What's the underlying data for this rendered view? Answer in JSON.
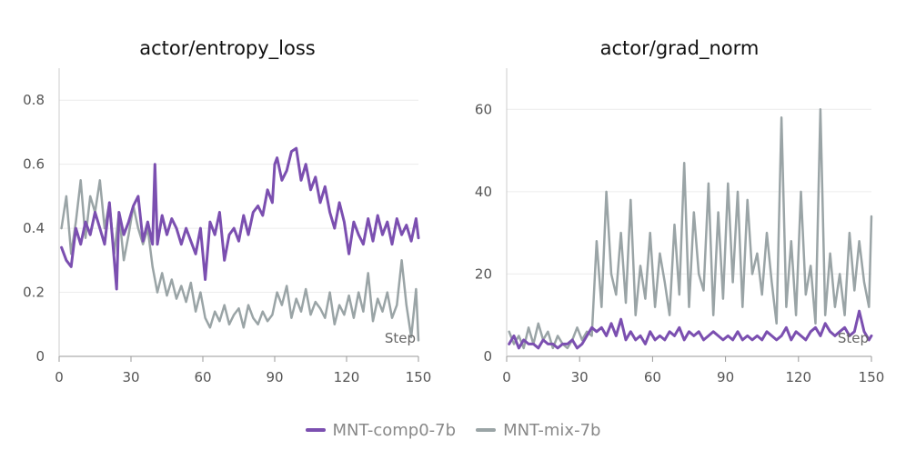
{
  "chart_data": [
    {
      "type": "line",
      "title": "actor/entropy_loss",
      "xlabel": "Step",
      "ylabel": "",
      "xlim": [
        0,
        150
      ],
      "ylim": [
        0,
        0.9
      ],
      "xticks": [
        "0",
        "30",
        "60",
        "90",
        "120",
        "150"
      ],
      "yticks": [
        "0",
        "0.2",
        "0.4",
        "0.6",
        "0.8"
      ],
      "grid": true,
      "series": [
        {
          "name": "MNT-comp0-7b",
          "color": "#7b4fb0",
          "x": [
            1,
            3,
            5,
            7,
            9,
            11,
            13,
            15,
            17,
            19,
            21,
            23,
            24,
            25,
            27,
            29,
            31,
            33,
            35,
            37,
            39,
            40,
            41,
            43,
            45,
            47,
            49,
            51,
            53,
            55,
            57,
            59,
            61,
            63,
            65,
            67,
            69,
            71,
            73,
            75,
            77,
            79,
            81,
            83,
            85,
            87,
            89,
            90,
            91,
            93,
            95,
            97,
            99,
            101,
            103,
            105,
            107,
            109,
            111,
            113,
            115,
            117,
            119,
            121,
            123,
            125,
            127,
            129,
            131,
            133,
            135,
            137,
            139,
            141,
            143,
            145,
            147,
            149,
            150
          ],
          "values": [
            0.34,
            0.3,
            0.28,
            0.4,
            0.35,
            0.42,
            0.38,
            0.45,
            0.4,
            0.35,
            0.48,
            0.3,
            0.21,
            0.45,
            0.38,
            0.42,
            0.47,
            0.5,
            0.36,
            0.42,
            0.35,
            0.6,
            0.35,
            0.44,
            0.38,
            0.43,
            0.4,
            0.35,
            0.4,
            0.36,
            0.32,
            0.4,
            0.24,
            0.42,
            0.38,
            0.45,
            0.3,
            0.38,
            0.4,
            0.36,
            0.44,
            0.38,
            0.45,
            0.47,
            0.44,
            0.52,
            0.48,
            0.6,
            0.62,
            0.55,
            0.58,
            0.64,
            0.65,
            0.55,
            0.6,
            0.52,
            0.56,
            0.48,
            0.53,
            0.45,
            0.4,
            0.48,
            0.42,
            0.32,
            0.42,
            0.38,
            0.35,
            0.43,
            0.36,
            0.44,
            0.38,
            0.42,
            0.35,
            0.43,
            0.38,
            0.41,
            0.36,
            0.43,
            0.37
          ]
        },
        {
          "name": "MNT-mix-7b",
          "color": "#9aa4a6",
          "x": [
            1,
            3,
            5,
            7,
            9,
            11,
            13,
            15,
            17,
            19,
            21,
            23,
            25,
            27,
            29,
            31,
            33,
            35,
            37,
            39,
            41,
            43,
            45,
            47,
            49,
            51,
            53,
            55,
            57,
            59,
            61,
            63,
            65,
            67,
            69,
            71,
            73,
            75,
            77,
            79,
            81,
            83,
            85,
            87,
            89,
            91,
            93,
            95,
            97,
            99,
            101,
            103,
            105,
            107,
            109,
            111,
            113,
            115,
            117,
            119,
            121,
            123,
            125,
            127,
            129,
            131,
            133,
            135,
            137,
            139,
            141,
            143,
            145,
            147,
            149,
            150
          ],
          "values": [
            0.4,
            0.5,
            0.32,
            0.42,
            0.55,
            0.37,
            0.5,
            0.45,
            0.55,
            0.4,
            0.48,
            0.32,
            0.45,
            0.3,
            0.38,
            0.47,
            0.4,
            0.35,
            0.4,
            0.28,
            0.2,
            0.26,
            0.19,
            0.24,
            0.18,
            0.22,
            0.17,
            0.23,
            0.14,
            0.2,
            0.12,
            0.09,
            0.14,
            0.11,
            0.16,
            0.1,
            0.13,
            0.15,
            0.09,
            0.16,
            0.12,
            0.1,
            0.14,
            0.11,
            0.13,
            0.2,
            0.16,
            0.22,
            0.12,
            0.18,
            0.14,
            0.21,
            0.13,
            0.17,
            0.15,
            0.12,
            0.2,
            0.1,
            0.16,
            0.13,
            0.19,
            0.12,
            0.2,
            0.14,
            0.26,
            0.11,
            0.18,
            0.14,
            0.2,
            0.12,
            0.16,
            0.3,
            0.16,
            0.06,
            0.21,
            0.05
          ]
        }
      ]
    },
    {
      "type": "line",
      "title": "actor/grad_norm",
      "xlabel": "Step",
      "ylabel": "",
      "xlim": [
        0,
        150
      ],
      "ylim": [
        0,
        70
      ],
      "xticks": [
        "0",
        "30",
        "60",
        "90",
        "120",
        "150"
      ],
      "yticks": [
        "0",
        "20",
        "40",
        "60"
      ],
      "grid": true,
      "series": [
        {
          "name": "MNT-comp0-7b",
          "color": "#7b4fb0",
          "x": [
            1,
            3,
            5,
            7,
            9,
            11,
            13,
            15,
            17,
            19,
            21,
            23,
            25,
            27,
            29,
            31,
            33,
            35,
            37,
            39,
            41,
            43,
            45,
            47,
            49,
            51,
            53,
            55,
            57,
            59,
            61,
            63,
            65,
            67,
            69,
            71,
            73,
            75,
            77,
            79,
            81,
            83,
            85,
            87,
            89,
            91,
            93,
            95,
            97,
            99,
            101,
            103,
            105,
            107,
            109,
            111,
            113,
            115,
            117,
            119,
            121,
            123,
            125,
            127,
            129,
            131,
            133,
            135,
            137,
            139,
            141,
            143,
            145,
            147,
            149,
            150
          ],
          "values": [
            3,
            5,
            2,
            4,
            3,
            3,
            2,
            4,
            3,
            3,
            2,
            3,
            3,
            4,
            2,
            3,
            5,
            7,
            6,
            7,
            5,
            8,
            5,
            9,
            4,
            6,
            4,
            5,
            3,
            6,
            4,
            5,
            4,
            6,
            5,
            7,
            4,
            6,
            5,
            6,
            4,
            5,
            6,
            5,
            4,
            5,
            4,
            6,
            4,
            5,
            4,
            5,
            4,
            6,
            5,
            4,
            5,
            7,
            4,
            6,
            5,
            4,
            6,
            7,
            5,
            8,
            6,
            5,
            6,
            7,
            5,
            6,
            11,
            6,
            4,
            5
          ]
        },
        {
          "name": "MNT-mix-7b",
          "color": "#9aa4a6",
          "x": [
            1,
            3,
            5,
            7,
            9,
            11,
            13,
            15,
            17,
            19,
            21,
            23,
            25,
            27,
            29,
            31,
            33,
            35,
            37,
            39,
            41,
            43,
            45,
            47,
            49,
            51,
            53,
            55,
            57,
            59,
            61,
            63,
            65,
            67,
            69,
            71,
            73,
            75,
            77,
            79,
            81,
            83,
            85,
            87,
            89,
            91,
            93,
            95,
            97,
            99,
            101,
            103,
            105,
            107,
            109,
            111,
            113,
            115,
            117,
            119,
            121,
            123,
            125,
            127,
            129,
            131,
            133,
            135,
            137,
            139,
            141,
            143,
            145,
            147,
            149,
            150
          ],
          "values": [
            6,
            3,
            5,
            2,
            7,
            3,
            8,
            4,
            6,
            2,
            5,
            3,
            2,
            4,
            7,
            4,
            6,
            5,
            28,
            12,
            40,
            20,
            15,
            30,
            13,
            38,
            10,
            22,
            14,
            30,
            12,
            25,
            18,
            10,
            32,
            15,
            47,
            12,
            35,
            20,
            16,
            42,
            10,
            35,
            14,
            42,
            18,
            40,
            12,
            38,
            20,
            25,
            15,
            30,
            18,
            8,
            58,
            12,
            28,
            10,
            40,
            15,
            22,
            8,
            60,
            10,
            25,
            12,
            20,
            10,
            30,
            16,
            28,
            18,
            12,
            34
          ]
        }
      ]
    }
  ],
  "legend": [
    {
      "name": "MNT-comp0-7b",
      "color": "#7b4fb0"
    },
    {
      "name": "MNT-mix-7b",
      "color": "#9aa4a6"
    }
  ]
}
